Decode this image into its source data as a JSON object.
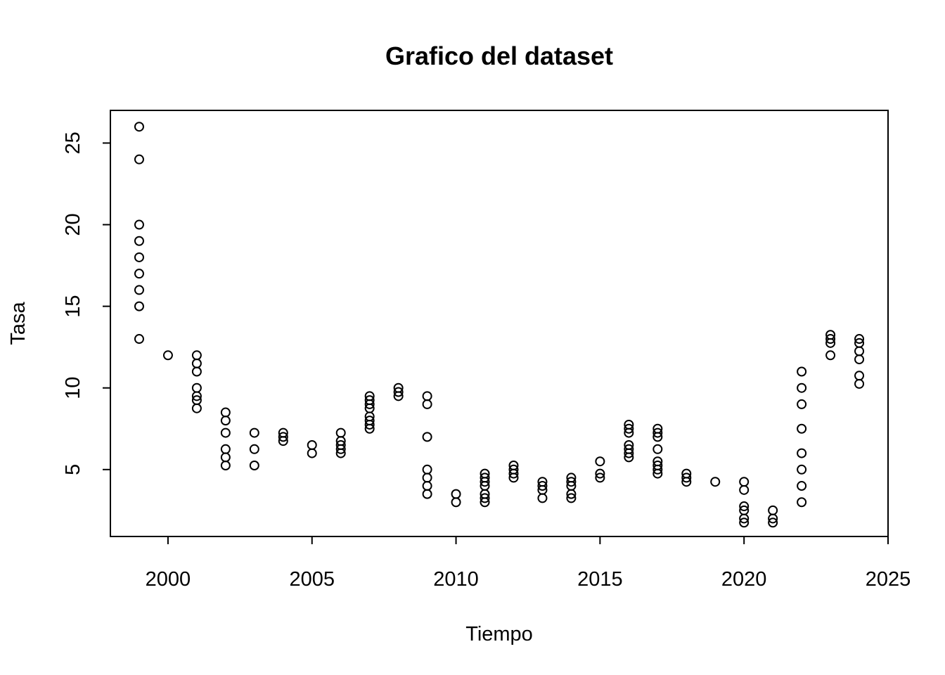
{
  "chart_data": {
    "type": "scatter",
    "title": "Grafico del dataset",
    "xlabel": "Tiempo",
    "ylabel": "Tasa",
    "xlim": [
      1998,
      2025
    ],
    "ylim": [
      0.9,
      27
    ],
    "xticks": [
      2000,
      2005,
      2010,
      2015,
      2020,
      2025
    ],
    "yticks": [
      5,
      10,
      15,
      20,
      25
    ],
    "grid": false,
    "points": [
      [
        1999,
        26
      ],
      [
        1999,
        24
      ],
      [
        1999,
        20
      ],
      [
        1999,
        19
      ],
      [
        1999,
        18
      ],
      [
        1999,
        17
      ],
      [
        1999,
        16
      ],
      [
        1999,
        15
      ],
      [
        1999,
        13
      ],
      [
        2000,
        12
      ],
      [
        2001,
        12
      ],
      [
        2001,
        11.5
      ],
      [
        2001,
        11
      ],
      [
        2001,
        10
      ],
      [
        2001,
        9.5
      ],
      [
        2001,
        9.25
      ],
      [
        2001,
        8.75
      ],
      [
        2002,
        8.5
      ],
      [
        2002,
        8
      ],
      [
        2002,
        7.25
      ],
      [
        2002,
        6.25
      ],
      [
        2002,
        5.75
      ],
      [
        2002,
        5.25
      ],
      [
        2003,
        7.25
      ],
      [
        2003,
        6.25
      ],
      [
        2003,
        5.25
      ],
      [
        2004,
        7.25
      ],
      [
        2004,
        7
      ],
      [
        2004,
        6.75
      ],
      [
        2005,
        6.5
      ],
      [
        2005,
        6
      ],
      [
        2006,
        7.25
      ],
      [
        2006,
        6.75
      ],
      [
        2006,
        6.5
      ],
      [
        2006,
        6.25
      ],
      [
        2006,
        6
      ],
      [
        2007,
        9.5
      ],
      [
        2007,
        9.25
      ],
      [
        2007,
        9
      ],
      [
        2007,
        8.75
      ],
      [
        2007,
        8.25
      ],
      [
        2007,
        8
      ],
      [
        2007,
        7.75
      ],
      [
        2007,
        7.5
      ],
      [
        2008,
        10
      ],
      [
        2008,
        9.75
      ],
      [
        2008,
        9.5
      ],
      [
        2009,
        9.5
      ],
      [
        2009,
        9
      ],
      [
        2009,
        7
      ],
      [
        2009,
        5
      ],
      [
        2009,
        4.5
      ],
      [
        2009,
        4
      ],
      [
        2009,
        3.5
      ],
      [
        2010,
        3.5
      ],
      [
        2010,
        3
      ],
      [
        2011,
        4.75
      ],
      [
        2011,
        4.5
      ],
      [
        2011,
        4.25
      ],
      [
        2011,
        4
      ],
      [
        2011,
        3.5
      ],
      [
        2011,
        3.25
      ],
      [
        2011,
        3
      ],
      [
        2012,
        5.25
      ],
      [
        2012,
        5
      ],
      [
        2012,
        4.75
      ],
      [
        2012,
        4.5
      ],
      [
        2013,
        4.25
      ],
      [
        2013,
        4
      ],
      [
        2013,
        3.75
      ],
      [
        2013,
        3.25
      ],
      [
        2014,
        4.5
      ],
      [
        2014,
        4.25
      ],
      [
        2014,
        4
      ],
      [
        2014,
        3.5
      ],
      [
        2014,
        3.25
      ],
      [
        2015,
        5.5
      ],
      [
        2015,
        4.75
      ],
      [
        2015,
        4.5
      ],
      [
        2016,
        7.75
      ],
      [
        2016,
        7.5
      ],
      [
        2016,
        7.25
      ],
      [
        2016,
        6.5
      ],
      [
        2016,
        6.25
      ],
      [
        2016,
        6
      ],
      [
        2016,
        5.75
      ],
      [
        2017,
        7.5
      ],
      [
        2017,
        7.25
      ],
      [
        2017,
        7
      ],
      [
        2017,
        6.25
      ],
      [
        2017,
        5.5
      ],
      [
        2017,
        5.25
      ],
      [
        2017,
        5
      ],
      [
        2017,
        4.75
      ],
      [
        2018,
        4.75
      ],
      [
        2018,
        4.5
      ],
      [
        2018,
        4.25
      ],
      [
        2019,
        4.25
      ],
      [
        2020,
        4.25
      ],
      [
        2020,
        3.75
      ],
      [
        2020,
        2.75
      ],
      [
        2020,
        2.5
      ],
      [
        2020,
        2
      ],
      [
        2020,
        1.75
      ],
      [
        2021,
        2.5
      ],
      [
        2021,
        2
      ],
      [
        2021,
        1.75
      ],
      [
        2022,
        11
      ],
      [
        2022,
        10
      ],
      [
        2022,
        9
      ],
      [
        2022,
        7.5
      ],
      [
        2022,
        6
      ],
      [
        2022,
        5
      ],
      [
        2022,
        4
      ],
      [
        2022,
        3
      ],
      [
        2023,
        13.25
      ],
      [
        2023,
        13
      ],
      [
        2023,
        12.75
      ],
      [
        2023,
        12
      ],
      [
        2024,
        13
      ],
      [
        2024,
        12.75
      ],
      [
        2024,
        12.25
      ],
      [
        2024,
        11.75
      ],
      [
        2024,
        10.75
      ],
      [
        2024,
        10.25
      ]
    ]
  }
}
